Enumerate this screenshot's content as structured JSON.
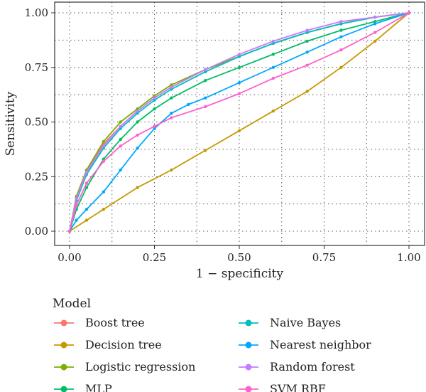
{
  "chart_data": {
    "type": "line",
    "title": "",
    "xlabel": "1 − specificity",
    "ylabel": "Sensitivity",
    "xlim": [
      0,
      1
    ],
    "ylim": [
      0,
      1
    ],
    "x_ticks": [
      "0.00",
      "0.25",
      "0.50",
      "0.75",
      "1.00"
    ],
    "y_ticks": [
      "0.00",
      "0.25",
      "0.50",
      "0.75",
      "1.00"
    ],
    "grid": true,
    "legend": {
      "title": "Model",
      "placement": "bottom"
    },
    "series": [
      {
        "name": "Boost tree",
        "color": "#F8766D",
        "points": [
          [
            0,
            0
          ],
          [
            0.02,
            0.15
          ],
          [
            0.05,
            0.27
          ],
          [
            0.1,
            0.4
          ],
          [
            0.15,
            0.48
          ],
          [
            0.2,
            0.55
          ],
          [
            0.25,
            0.61
          ],
          [
            0.3,
            0.66
          ],
          [
            0.4,
            0.74
          ],
          [
            0.5,
            0.8
          ],
          [
            0.6,
            0.86
          ],
          [
            0.7,
            0.91
          ],
          [
            0.8,
            0.95
          ],
          [
            0.9,
            0.98
          ],
          [
            1,
            1
          ]
        ]
      },
      {
        "name": "Decision tree",
        "color": "#C49A00",
        "points": [
          [
            0,
            0
          ],
          [
            0.05,
            0.05
          ],
          [
            0.1,
            0.1
          ],
          [
            0.2,
            0.2
          ],
          [
            0.3,
            0.28
          ],
          [
            0.4,
            0.37
          ],
          [
            0.5,
            0.46
          ],
          [
            0.6,
            0.55
          ],
          [
            0.7,
            0.64
          ],
          [
            0.8,
            0.75
          ],
          [
            0.9,
            0.87
          ],
          [
            1,
            1
          ]
        ]
      },
      {
        "name": "Logistic regression",
        "color": "#7CAE00",
        "points": [
          [
            0,
            0
          ],
          [
            0.02,
            0.16
          ],
          [
            0.05,
            0.28
          ],
          [
            0.1,
            0.41
          ],
          [
            0.15,
            0.5
          ],
          [
            0.2,
            0.56
          ],
          [
            0.25,
            0.62
          ],
          [
            0.3,
            0.67
          ],
          [
            0.4,
            0.74
          ],
          [
            0.5,
            0.8
          ],
          [
            0.6,
            0.86
          ],
          [
            0.7,
            0.91
          ],
          [
            0.8,
            0.95
          ],
          [
            0.9,
            0.98
          ],
          [
            1,
            1
          ]
        ]
      },
      {
        "name": "MLP",
        "color": "#00BE67",
        "points": [
          [
            0,
            0
          ],
          [
            0.02,
            0.1
          ],
          [
            0.05,
            0.2
          ],
          [
            0.1,
            0.33
          ],
          [
            0.15,
            0.42
          ],
          [
            0.2,
            0.5
          ],
          [
            0.25,
            0.56
          ],
          [
            0.3,
            0.61
          ],
          [
            0.4,
            0.69
          ],
          [
            0.5,
            0.75
          ],
          [
            0.6,
            0.81
          ],
          [
            0.7,
            0.87
          ],
          [
            0.8,
            0.92
          ],
          [
            0.9,
            0.96
          ],
          [
            1,
            1
          ]
        ]
      },
      {
        "name": "Naive Bayes",
        "color": "#00BFC4",
        "points": [
          [
            0,
            0
          ],
          [
            0.02,
            0.14
          ],
          [
            0.05,
            0.26
          ],
          [
            0.1,
            0.38
          ],
          [
            0.15,
            0.47
          ],
          [
            0.2,
            0.54
          ],
          [
            0.25,
            0.6
          ],
          [
            0.3,
            0.65
          ],
          [
            0.4,
            0.73
          ],
          [
            0.5,
            0.8
          ],
          [
            0.6,
            0.86
          ],
          [
            0.7,
            0.91
          ],
          [
            0.8,
            0.95
          ],
          [
            0.9,
            0.98
          ],
          [
            1,
            1
          ]
        ]
      },
      {
        "name": "Nearest neighbor",
        "color": "#00A9FF",
        "points": [
          [
            0,
            0
          ],
          [
            0.02,
            0.05
          ],
          [
            0.05,
            0.1
          ],
          [
            0.1,
            0.18
          ],
          [
            0.15,
            0.28
          ],
          [
            0.2,
            0.38
          ],
          [
            0.25,
            0.47
          ],
          [
            0.3,
            0.54
          ],
          [
            0.35,
            0.58
          ],
          [
            0.4,
            0.61
          ],
          [
            0.5,
            0.68
          ],
          [
            0.6,
            0.75
          ],
          [
            0.7,
            0.82
          ],
          [
            0.8,
            0.89
          ],
          [
            0.9,
            0.95
          ],
          [
            1,
            1
          ]
        ]
      },
      {
        "name": "Random forest",
        "color": "#C77CFF",
        "points": [
          [
            0,
            0
          ],
          [
            0.02,
            0.15
          ],
          [
            0.05,
            0.27
          ],
          [
            0.1,
            0.39
          ],
          [
            0.15,
            0.48
          ],
          [
            0.2,
            0.55
          ],
          [
            0.25,
            0.61
          ],
          [
            0.3,
            0.66
          ],
          [
            0.4,
            0.74
          ],
          [
            0.5,
            0.81
          ],
          [
            0.6,
            0.87
          ],
          [
            0.7,
            0.92
          ],
          [
            0.8,
            0.96
          ],
          [
            0.9,
            0.98
          ],
          [
            1,
            1
          ]
        ]
      },
      {
        "name": "SVM RBF",
        "color": "#FF61CC",
        "points": [
          [
            0,
            0
          ],
          [
            0.02,
            0.12
          ],
          [
            0.05,
            0.22
          ],
          [
            0.1,
            0.32
          ],
          [
            0.15,
            0.39
          ],
          [
            0.2,
            0.44
          ],
          [
            0.25,
            0.48
          ],
          [
            0.3,
            0.52
          ],
          [
            0.4,
            0.57
          ],
          [
            0.5,
            0.63
          ],
          [
            0.6,
            0.7
          ],
          [
            0.7,
            0.76
          ],
          [
            0.8,
            0.83
          ],
          [
            0.9,
            0.91
          ],
          [
            1,
            1
          ]
        ]
      }
    ]
  }
}
